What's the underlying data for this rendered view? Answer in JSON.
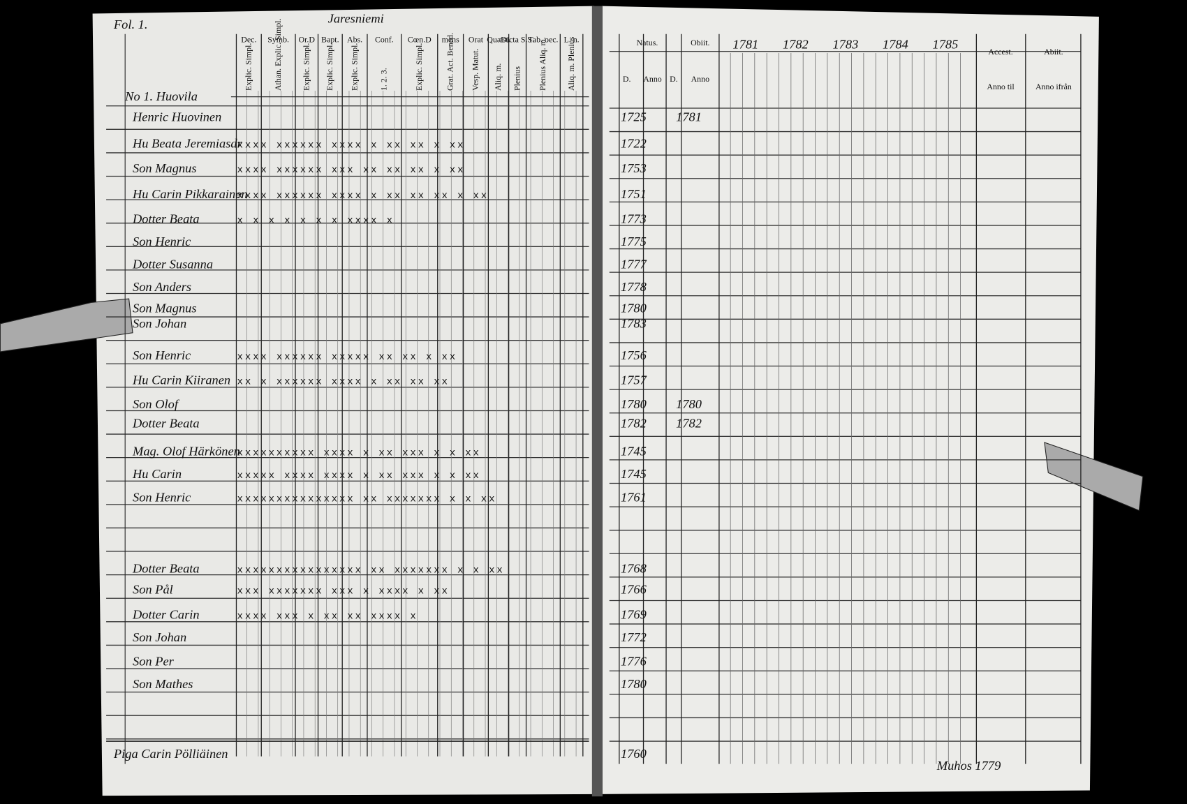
{
  "left_page": {
    "folio": "Fol. 1.",
    "village": "Jaresniemi",
    "household": "No 1. Huovila",
    "column_groups": [
      {
        "title": "Dec.",
        "sub": "Explic. Simpl."
      },
      {
        "title": "Symb.",
        "sub": "Athan. Explic. Simpl."
      },
      {
        "title": "Or.D",
        "sub": "Explic. Simpl."
      },
      {
        "title": "Bapt.",
        "sub": "Explic. Simpl."
      },
      {
        "title": "Abs.",
        "sub": "Explic. Simpl."
      },
      {
        "title": "Conf.",
        "sub": "1. 2. 3."
      },
      {
        "title": "Cœn.D",
        "sub": "Explic. Simpl."
      },
      {
        "title": "mens",
        "sub": "Grat. Act. Bened."
      },
      {
        "title": "Orat",
        "sub": "Vesp. Matut."
      },
      {
        "title": "Quæst.",
        "sub": "Aliq. m."
      },
      {
        "title": "Dicta S.S.",
        "sub": "Plenius"
      },
      {
        "title": "Tab. oec.",
        "sub": "Plenius Aliq. m."
      },
      {
        "title": "L. n.",
        "sub": "Aliq. m. Plenius"
      }
    ]
  },
  "right_page": {
    "natus": "Natus.",
    "obiit": "Obiit.",
    "day": "D.",
    "anno": "Anno",
    "years": [
      "1781",
      "1782",
      "1783",
      "1784",
      "1785"
    ],
    "accessit": "Accest.",
    "anno_til": "Anno til",
    "abiit": "Abiit.",
    "anno_ifran": "Anno ifrån",
    "signature": "Muhos 1779"
  },
  "persons": [
    {
      "name": "Henric Huovinen",
      "marks": "",
      "born": "1725",
      "died": "1781"
    },
    {
      "name": "Hu Beata Jeremiasdr",
      "marks": "xxxx xxxxxx xxxx x xx xx x       xx",
      "born": "1722"
    },
    {
      "name": "Son Magnus",
      "marks": "xxxx xxxxxx xxx xx xx xx x       xx",
      "born": "1753"
    },
    {
      "name": "Hu Carin Pikkarainen",
      "marks": "xxxx xxxxxx xxxx x xx xx xx  x  xx",
      "born": "1751"
    },
    {
      "name": "Dotter Beata",
      "marks": "x x x x x x  x  xxxx          x",
      "born": "1773"
    },
    {
      "name": "Son Henric",
      "marks": "",
      "born": "1775"
    },
    {
      "name": "Dotter Susanna",
      "marks": "",
      "born": "1777"
    },
    {
      "name": "Son Anders",
      "marks": "",
      "born": "1778"
    },
    {
      "name": "Son Magnus",
      "marks": "",
      "born": "1780"
    },
    {
      "name": "Son Johan",
      "marks": "",
      "born": "1783"
    },
    {
      "name": "Son Henric",
      "marks": "xxxx xxxxxx xxxxx xx xx x       xx",
      "born": "1756"
    },
    {
      "name": "Hu Carin Kiiranen",
      "marks": "xx x xxxxxx xxxx x xx xx        xx",
      "born": "1757"
    },
    {
      "name": "Son Olof",
      "marks": "",
      "born": "1780",
      "died": "1780"
    },
    {
      "name": "Dotter Beata",
      "marks": "",
      "born": "1782",
      "died": "1782"
    },
    {
      "name": "Mag. Olof Härkönen",
      "marks": "xxxxxxxxxx xxxx x xx xxx x    x xx",
      "born": "1745"
    },
    {
      "name": "Hu Carin",
      "marks": "xxxxx xxxx xxxx x xx xxx x x   xx",
      "born": "1745"
    },
    {
      "name": "Son Henric",
      "marks": "xxxxxxxxxxxxxxx xx xxxxxxx x x xx",
      "born": "1761"
    },
    {
      "name": "Dotter Beata",
      "marks": "xxxxxxxxxxxxxxxx xx xxxxxxx x x xx",
      "born": "1768"
    },
    {
      "name": "Son Pål",
      "marks": "xxx xxxxxxx xxx x xxxx x        xx",
      "born": "1766"
    },
    {
      "name": "Dotter Carin",
      "marks": "xxxx xxx x  xx  xx xxxx         x",
      "born": "1769"
    },
    {
      "name": "Son Johan",
      "marks": "",
      "born": "1772"
    },
    {
      "name": "Son Per",
      "marks": "",
      "born": "1776"
    },
    {
      "name": "Son Mathes",
      "marks": "",
      "born": "1780"
    },
    {
      "name": "Piga Carin Pölliäinen",
      "marks": "",
      "born": "1760"
    }
  ]
}
